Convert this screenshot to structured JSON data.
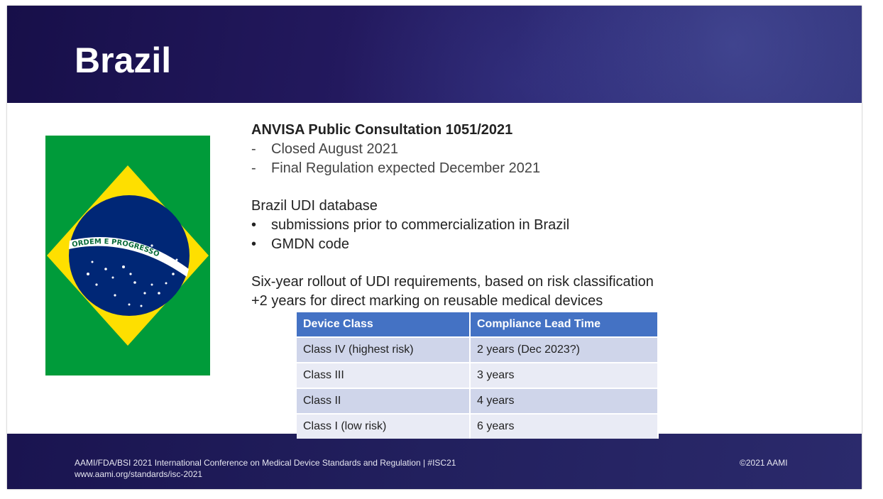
{
  "header": {
    "title": "Brazil"
  },
  "flag": {
    "banner_text": "ORDEM E PROGRESSO",
    "colors": {
      "green": "#009b3a",
      "yellow": "#fedf00",
      "blue": "#002776",
      "white": "#ffffff"
    }
  },
  "content": {
    "heading": "ANVISA Public Consultation 1051/2021",
    "dash_items": [
      "Closed August 2021",
      "Final Regulation expected December 2021"
    ],
    "database_title": "Brazil UDI database",
    "bullet_items": [
      "submissions prior to commercialization in Brazil",
      "GMDN code"
    ],
    "rollout_line1": "Six-year rollout of UDI requirements, based on risk classification",
    "rollout_line2": "+2 years for direct marking on reusable medical devices"
  },
  "table": {
    "headers": [
      "Device Class",
      "Compliance Lead Time"
    ],
    "rows": [
      [
        "Class IV (highest risk)",
        "2 years (Dec 2023?)"
      ],
      [
        "Class III",
        "3 years"
      ],
      [
        "Class II",
        "4 years"
      ],
      [
        "Class I (low risk)",
        "6 years"
      ]
    ],
    "colors": {
      "header": "#4472c4",
      "odd_row": "#cfd5ea",
      "even_row": "#e9ebf5"
    }
  },
  "footer": {
    "line1": "AAMI/FDA/BSI 2021 International Conference on Medical Device Standards and Regulation  |   #ISC21",
    "line2": "www.aami.org/standards/isc-2021",
    "copyright": "©2021 AAMI"
  }
}
